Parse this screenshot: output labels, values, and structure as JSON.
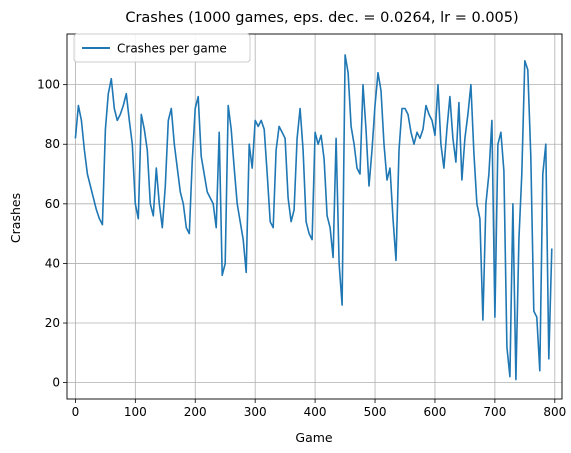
{
  "chart_data": {
    "type": "line",
    "title": "Crashes (1000 games, eps. dec. = 0.0264, lr = 0.005)",
    "xlabel": "Game",
    "ylabel": "Crashes",
    "xlim": [
      -14,
      812
    ],
    "ylim": [
      -5.5,
      117
    ],
    "xticks": [
      0,
      100,
      200,
      300,
      400,
      500,
      600,
      700,
      800
    ],
    "yticks": [
      0,
      20,
      40,
      60,
      80,
      100
    ],
    "grid": true,
    "legend_position": "upper-left",
    "series": [
      {
        "name": "Crashes per game",
        "color": "#1f77b4",
        "x": [
          0,
          5,
          10,
          15,
          20,
          25,
          30,
          35,
          40,
          45,
          50,
          55,
          60,
          65,
          70,
          75,
          80,
          85,
          90,
          95,
          100,
          105,
          110,
          115,
          120,
          125,
          130,
          135,
          140,
          145,
          150,
          155,
          160,
          165,
          170,
          175,
          180,
          185,
          190,
          195,
          200,
          205,
          210,
          215,
          220,
          225,
          230,
          235,
          240,
          245,
          250,
          255,
          260,
          265,
          270,
          275,
          280,
          285,
          290,
          295,
          300,
          305,
          310,
          315,
          320,
          325,
          330,
          335,
          340,
          345,
          350,
          355,
          360,
          365,
          370,
          375,
          380,
          385,
          390,
          395,
          400,
          405,
          410,
          415,
          420,
          425,
          430,
          435,
          440,
          445,
          450,
          455,
          460,
          465,
          470,
          475,
          480,
          485,
          490,
          495,
          500,
          505,
          510,
          515,
          520,
          525,
          530,
          535,
          540,
          545,
          550,
          555,
          560,
          565,
          570,
          575,
          580,
          585,
          590,
          595,
          600,
          605,
          610,
          615,
          620,
          625,
          630,
          635,
          640,
          645,
          650,
          655,
          660,
          665,
          670,
          675,
          680,
          685,
          690,
          695,
          700,
          705,
          710,
          715,
          720,
          725,
          730,
          735,
          740,
          745,
          750,
          755,
          760,
          765,
          770,
          775,
          780,
          785,
          790,
          795
        ],
        "values": [
          82,
          93,
          88,
          78,
          70,
          66,
          62,
          58,
          55,
          53,
          85,
          97,
          102,
          92,
          88,
          90,
          93,
          97,
          88,
          80,
          60,
          55,
          90,
          85,
          78,
          60,
          56,
          72,
          60,
          52,
          66,
          88,
          92,
          80,
          72,
          64,
          60,
          52,
          50,
          74,
          92,
          96,
          76,
          70,
          64,
          62,
          60,
          52,
          84,
          36,
          40,
          93,
          85,
          72,
          60,
          54,
          48,
          37,
          80,
          72,
          88,
          86,
          88,
          85,
          70,
          54,
          52,
          78,
          86,
          84,
          82,
          62,
          54,
          58,
          82,
          92,
          78,
          54,
          50,
          48,
          84,
          80,
          83,
          75,
          56,
          52,
          42,
          82,
          40,
          26,
          110,
          104,
          86,
          80,
          72,
          70,
          100,
          85,
          66,
          78,
          93,
          104,
          98,
          80,
          68,
          72,
          55,
          41,
          78,
          92,
          92,
          90,
          84,
          80,
          84,
          82,
          85,
          93,
          90,
          88,
          83,
          100,
          80,
          72,
          85,
          96,
          82,
          74,
          94,
          68,
          82,
          90,
          100,
          77,
          60,
          55,
          21,
          60,
          70,
          88,
          22,
          80,
          84,
          71,
          12,
          2,
          60,
          1,
          48,
          70,
          108,
          105,
          76,
          24,
          22,
          4,
          70,
          80,
          8,
          45
        ]
      }
    ]
  }
}
